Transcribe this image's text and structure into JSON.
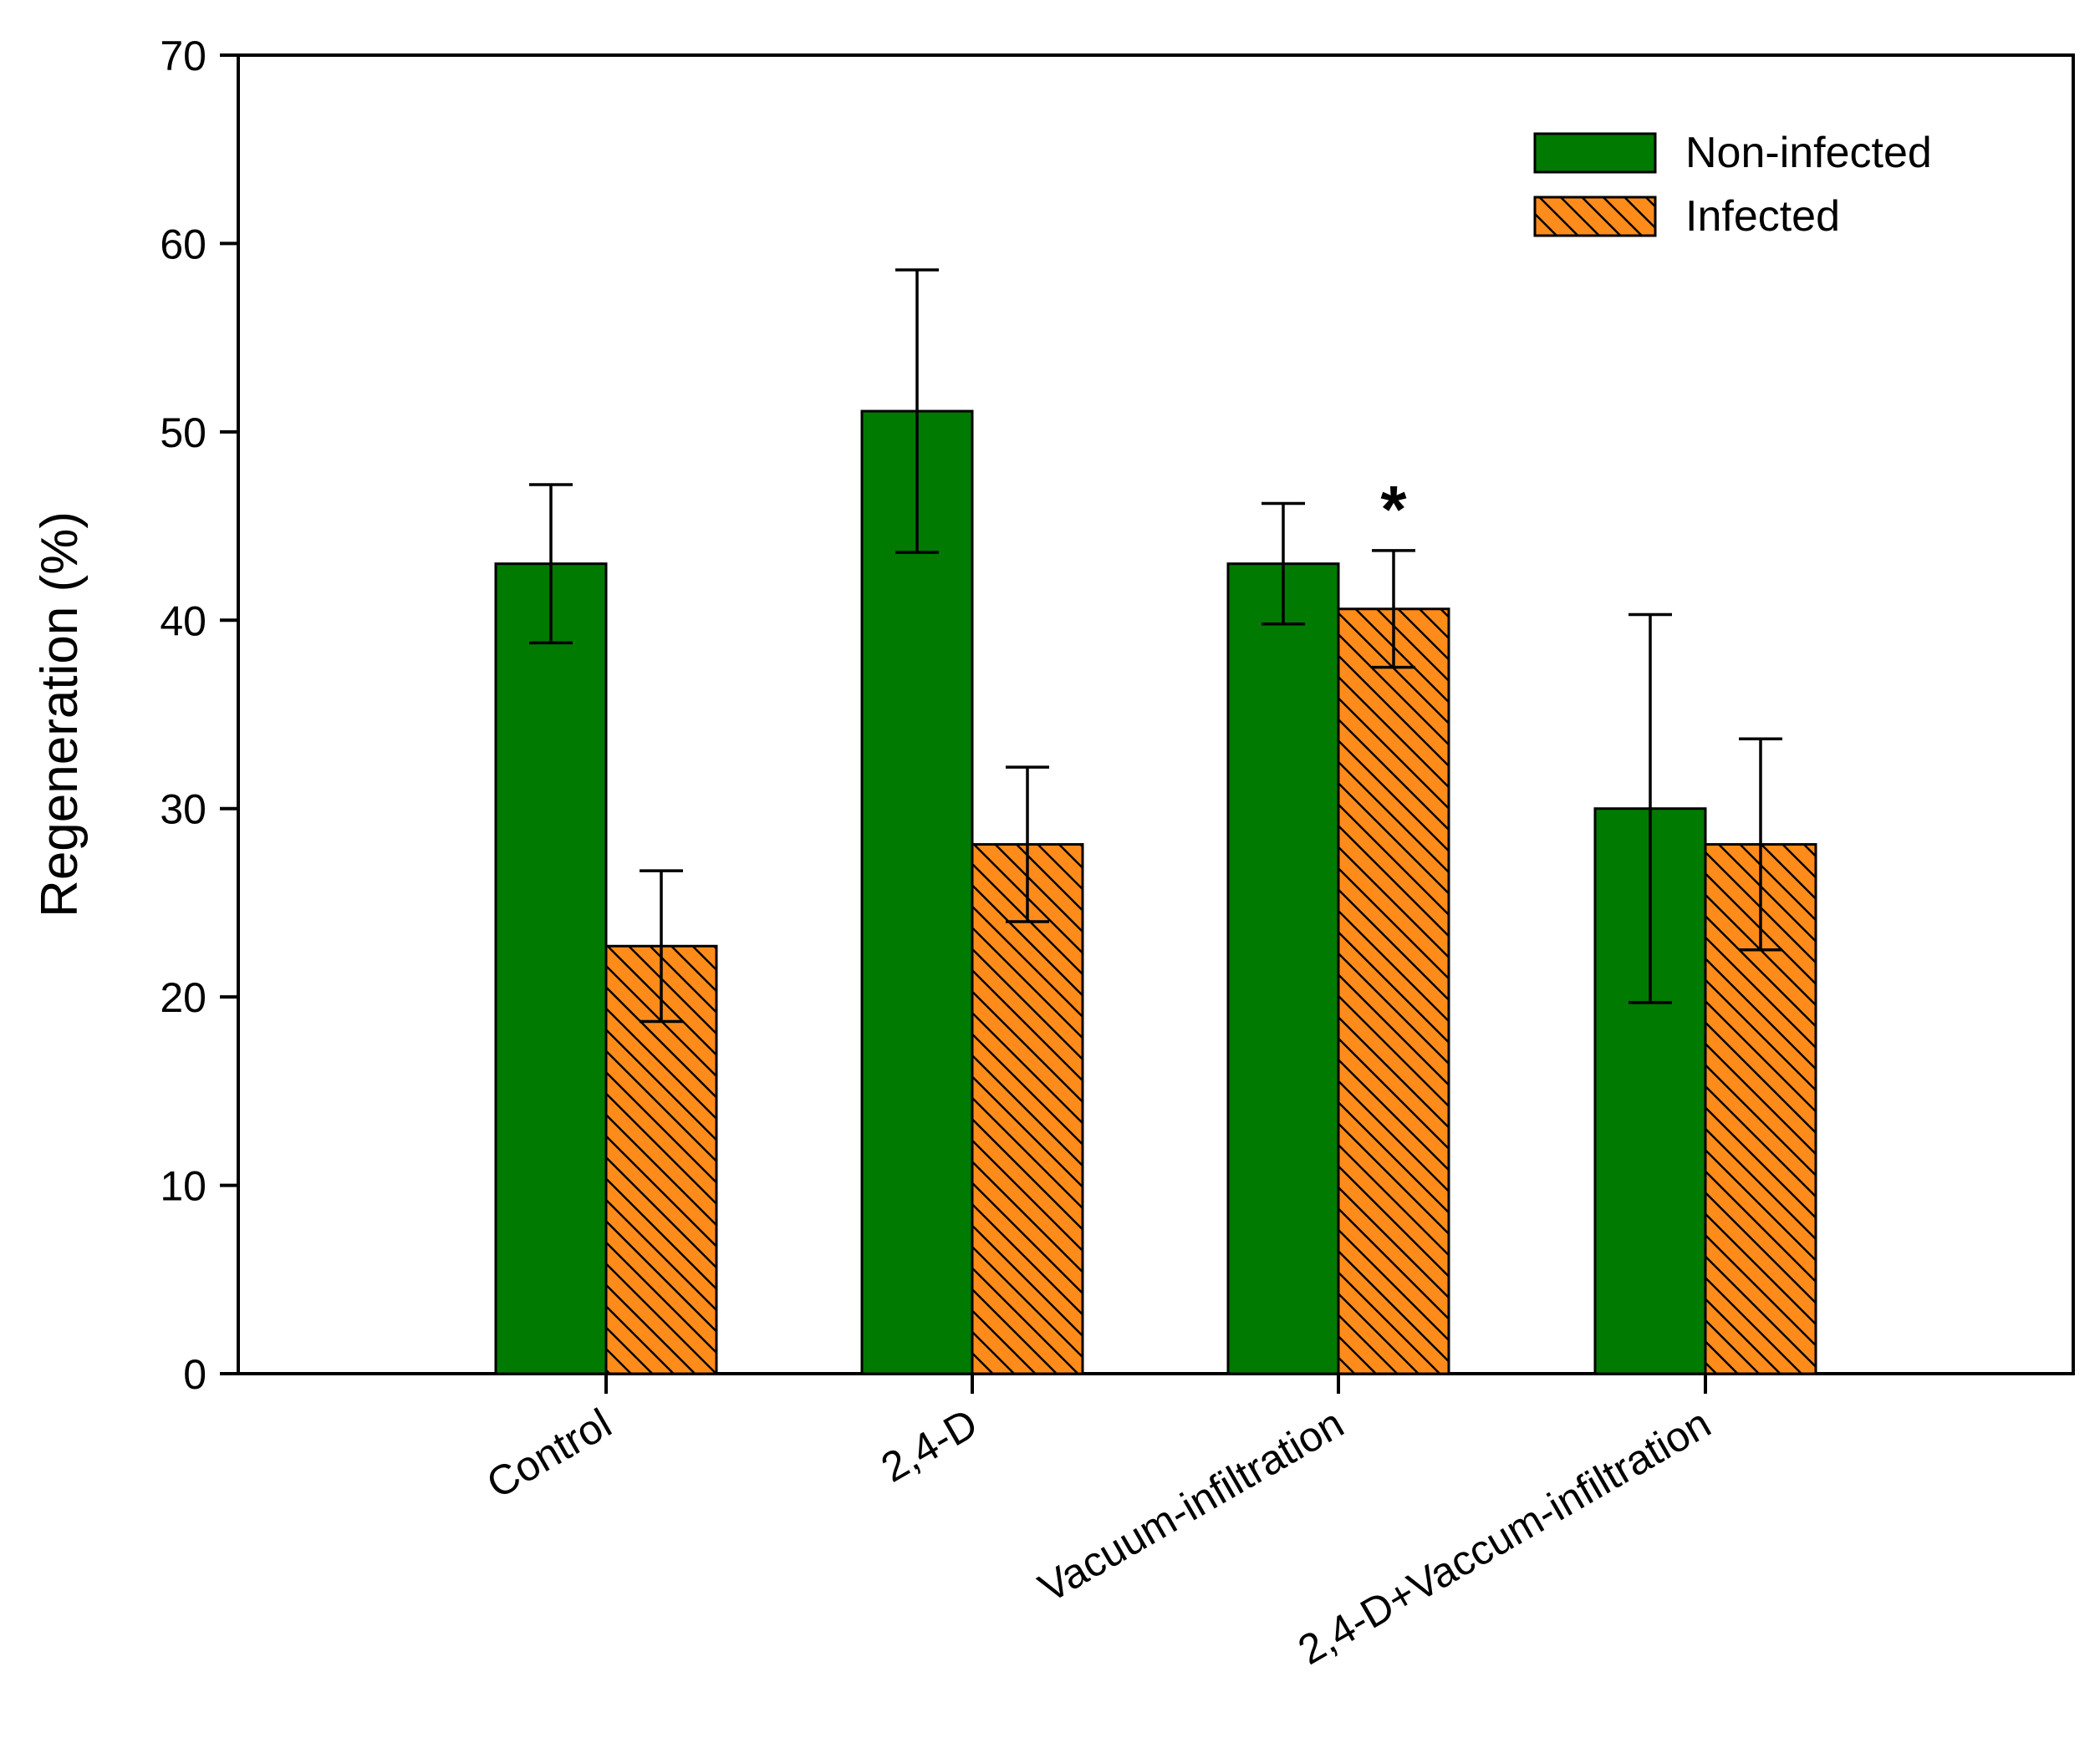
{
  "chart_data": {
    "type": "bar",
    "title": "",
    "xlabel": "",
    "ylabel": "Regeneration (%)",
    "ylim": [
      0,
      70
    ],
    "yticks": [
      0,
      10,
      20,
      30,
      40,
      50,
      60,
      70
    ],
    "ytick_labels": [
      "0",
      "10",
      "20",
      "30",
      "40",
      "50",
      "60",
      "70"
    ],
    "categories": [
      "Control",
      "2,4-D",
      "Vacuum-infiltration",
      "2,4-D+Vaccum-infiltration"
    ],
    "series": [
      {
        "name": "Non-infected",
        "color": "#007a00",
        "pattern": "solid",
        "values": [
          43.0,
          51.1,
          43.0,
          30.0
        ],
        "error": [
          4.2,
          7.5,
          3.2,
          10.3
        ]
      },
      {
        "name": "Infected",
        "color": "#ff8c1a",
        "pattern": "hatched",
        "values": [
          22.7,
          28.1,
          40.6,
          28.1
        ],
        "error": [
          4.0,
          4.1,
          3.1,
          5.6
        ]
      }
    ],
    "annotations": [
      {
        "text": "*",
        "category": "Vacuum-infiltration",
        "series": "Infected"
      }
    ],
    "legend": {
      "position": "top-right"
    },
    "grid": false
  }
}
